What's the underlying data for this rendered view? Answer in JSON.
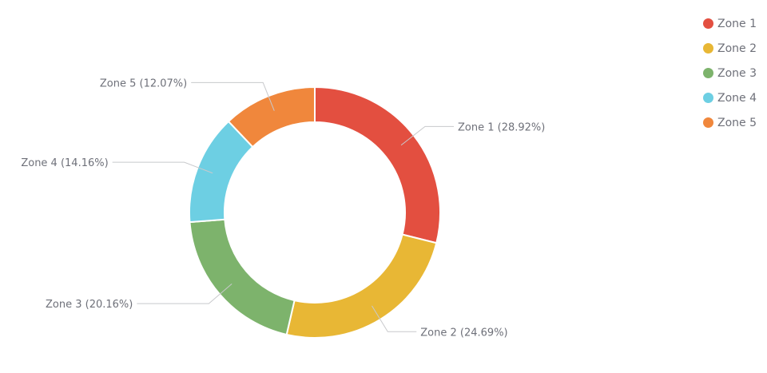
{
  "chart_data": {
    "type": "pie",
    "donut": true,
    "unit": "%",
    "legend_position": "top-right",
    "series": [
      {
        "name": "Zone 1",
        "value": 28.92,
        "color": "#e34f40",
        "label": "Zone 1 (28.92%)"
      },
      {
        "name": "Zone 2",
        "value": 24.69,
        "color": "#e8b735",
        "label": "Zone 2 (24.69%)"
      },
      {
        "name": "Zone 3",
        "value": 20.16,
        "color": "#7db36c",
        "label": "Zone 3 (20.16%)"
      },
      {
        "name": "Zone 4",
        "value": 14.16,
        "color": "#6dcfe3",
        "label": "Zone 4 (14.16%)"
      },
      {
        "name": "Zone 5",
        "value": 12.07,
        "color": "#f0873c",
        "label": "Zone 5 (12.07%)"
      }
    ]
  },
  "legend": {
    "items": [
      "Zone 1",
      "Zone 2",
      "Zone 3",
      "Zone 4",
      "Zone 5"
    ]
  }
}
